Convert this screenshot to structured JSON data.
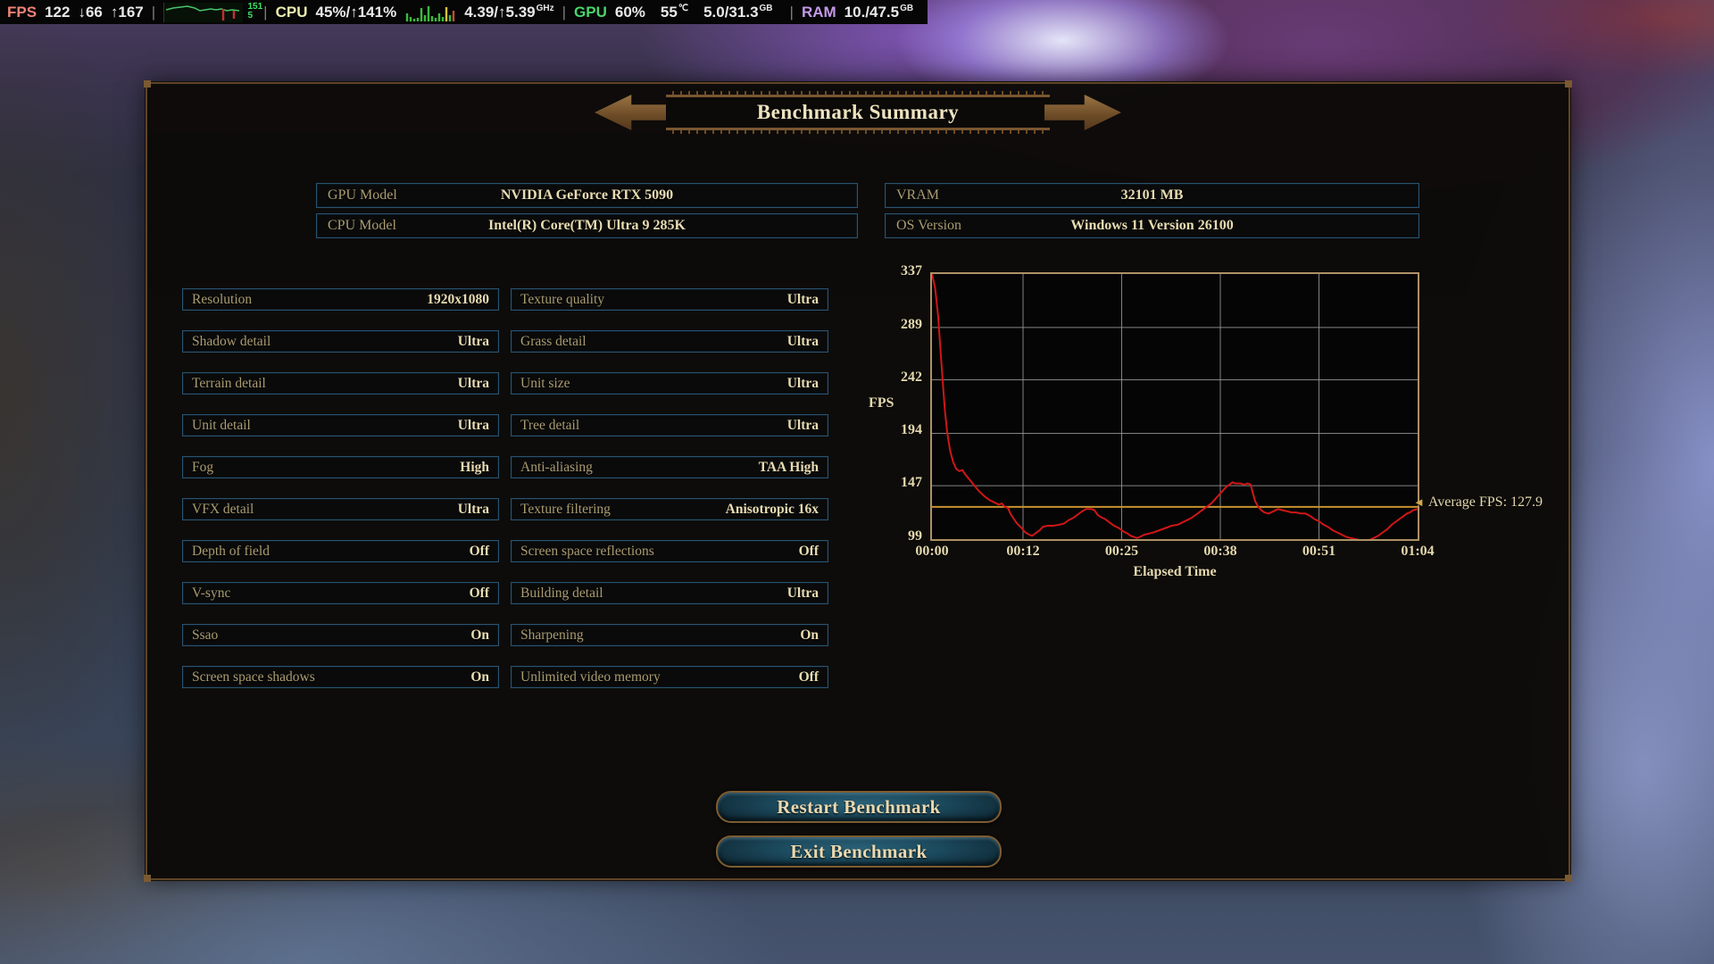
{
  "overlay": {
    "fps": {
      "label": "FPS",
      "current": "122",
      "low": "↓66",
      "high": "↑167"
    },
    "frametime_graph": {
      "icon": "frametime-line-graph",
      "max": "151",
      "min": "5"
    },
    "cpu": {
      "label": "CPU",
      "usage": "45%/↑141%",
      "cores_icon": "cpu-core-bars-graph",
      "clock": "4.39/↑5.39",
      "clock_unit": "GHz"
    },
    "gpu": {
      "label": "GPU",
      "usage": "60%",
      "temp": "55",
      "temp_unit": "℃",
      "vram": "5.0/31.3",
      "vram_unit": "GB"
    },
    "ram": {
      "label": "RAM",
      "usage": "10./47.5",
      "unit": "GB"
    },
    "separator": "|"
  },
  "panel": {
    "title": "Benchmark Summary",
    "system_info": [
      {
        "label": "GPU Model",
        "value": "NVIDIA GeForce RTX 5090"
      },
      {
        "label": "CPU Model",
        "value": "Intel(R) Core(TM) Ultra 9 285K"
      },
      {
        "label": "VRAM",
        "value": "32101 MB"
      },
      {
        "label": "OS Version",
        "value": "Windows 11 Version 26100"
      }
    ],
    "settings_left": [
      {
        "label": "Resolution",
        "value": "1920x1080"
      },
      {
        "label": "Shadow detail",
        "value": "Ultra"
      },
      {
        "label": "Terrain detail",
        "value": "Ultra"
      },
      {
        "label": "Unit detail",
        "value": "Ultra"
      },
      {
        "label": "Fog",
        "value": "High"
      },
      {
        "label": "VFX detail",
        "value": "Ultra"
      },
      {
        "label": "Depth of field",
        "value": "Off"
      },
      {
        "label": "V-sync",
        "value": "Off"
      },
      {
        "label": "Ssao",
        "value": "On"
      },
      {
        "label": "Screen space shadows",
        "value": "On"
      }
    ],
    "settings_right": [
      {
        "label": "Texture quality",
        "value": "Ultra"
      },
      {
        "label": "Grass detail",
        "value": "Ultra"
      },
      {
        "label": "Unit size",
        "value": "Ultra"
      },
      {
        "label": "Tree detail",
        "value": "Ultra"
      },
      {
        "label": "Anti-aliasing",
        "value": "TAA High"
      },
      {
        "label": "Texture filtering",
        "value": "Anisotropic 16x"
      },
      {
        "label": "Screen space reflections",
        "value": "Off"
      },
      {
        "label": "Building detail",
        "value": "Ultra"
      },
      {
        "label": "Sharpening",
        "value": "On"
      },
      {
        "label": "Unlimited video memory",
        "value": "Off"
      }
    ],
    "buttons": {
      "restart": "Restart Benchmark",
      "exit": "Exit Benchmark"
    }
  },
  "chart_data": {
    "type": "line",
    "title": "",
    "xlabel": "Elapsed Time",
    "ylabel": "FPS",
    "x_ticks": [
      "00:00",
      "00:12",
      "00:25",
      "00:38",
      "00:51",
      "01:04"
    ],
    "x_tick_seconds": [
      0,
      12,
      25,
      38,
      51,
      64
    ],
    "y_ticks": [
      337,
      289,
      242,
      194,
      147,
      99
    ],
    "ylim": [
      99,
      337
    ],
    "xlim_seconds": [
      0,
      64
    ],
    "grid": true,
    "line_color": "#d01616",
    "grid_color": "#999999",
    "average_fps": 127.9,
    "average_label": "Average FPS: 127.9",
    "average_arrow": "◄",
    "average_line_color": "#c8922f",
    "series": [
      {
        "name": "FPS",
        "points": [
          [
            0,
            337
          ],
          [
            0.4,
            325
          ],
          [
            0.8,
            300
          ],
          [
            1.1,
            270
          ],
          [
            1.4,
            242
          ],
          [
            1.7,
            215
          ],
          [
            2.0,
            195
          ],
          [
            2.4,
            178
          ],
          [
            2.8,
            168
          ],
          [
            3.2,
            162
          ],
          [
            3.6,
            160
          ],
          [
            4.0,
            161
          ],
          [
            4.4,
            157
          ],
          [
            5.0,
            152
          ],
          [
            5.6,
            147
          ],
          [
            6.2,
            142
          ],
          [
            7.0,
            137
          ],
          [
            7.6,
            134
          ],
          [
            8.2,
            132
          ],
          [
            8.8,
            130
          ],
          [
            9.2,
            131
          ],
          [
            9.6,
            128
          ],
          [
            10.0,
            127
          ],
          [
            10.4,
            121
          ],
          [
            10.8,
            117
          ],
          [
            11.2,
            113
          ],
          [
            11.8,
            109
          ],
          [
            12.3,
            105
          ],
          [
            12.8,
            103
          ],
          [
            13.2,
            102
          ],
          [
            13.6,
            104
          ],
          [
            14.2,
            107
          ],
          [
            14.6,
            110
          ],
          [
            15.2,
            111
          ],
          [
            16.0,
            111
          ],
          [
            16.8,
            112
          ],
          [
            17.4,
            113
          ],
          [
            18.0,
            116
          ],
          [
            18.6,
            118
          ],
          [
            19.2,
            121
          ],
          [
            19.8,
            124
          ],
          [
            20.3,
            126
          ],
          [
            21.0,
            126
          ],
          [
            21.4,
            125
          ],
          [
            21.8,
            121
          ],
          [
            22.2,
            119
          ],
          [
            22.8,
            117
          ],
          [
            23.4,
            114
          ],
          [
            24.0,
            111
          ],
          [
            24.6,
            109
          ],
          [
            25.2,
            106
          ],
          [
            25.8,
            104
          ],
          [
            26.2,
            102
          ],
          [
            26.6,
            101
          ],
          [
            27.0,
            100
          ],
          [
            27.4,
            101
          ],
          [
            28.0,
            103
          ],
          [
            28.6,
            104
          ],
          [
            29.2,
            105
          ],
          [
            30.0,
            107
          ],
          [
            30.8,
            109
          ],
          [
            31.6,
            111
          ],
          [
            32.4,
            112
          ],
          [
            33.0,
            114
          ],
          [
            33.6,
            116
          ],
          [
            34.2,
            118
          ],
          [
            34.8,
            121
          ],
          [
            35.2,
            123
          ],
          [
            35.8,
            126
          ],
          [
            36.2,
            128
          ],
          [
            36.8,
            131
          ],
          [
            37.2,
            134
          ],
          [
            37.6,
            137
          ],
          [
            38.0,
            140
          ],
          [
            38.4,
            143
          ],
          [
            38.8,
            146
          ],
          [
            39.2,
            148
          ],
          [
            39.6,
            150
          ],
          [
            40.0,
            149
          ],
          [
            40.6,
            149
          ],
          [
            41.2,
            148
          ],
          [
            41.6,
            149
          ],
          [
            42.0,
            148
          ],
          [
            42.3,
            140
          ],
          [
            42.6,
            133
          ],
          [
            43.0,
            128
          ],
          [
            43.4,
            125
          ],
          [
            43.8,
            123
          ],
          [
            44.4,
            122
          ],
          [
            45.0,
            124
          ],
          [
            45.6,
            126
          ],
          [
            46.2,
            125
          ],
          [
            46.8,
            124
          ],
          [
            47.4,
            123
          ],
          [
            48.0,
            123
          ],
          [
            48.6,
            122
          ],
          [
            49.2,
            122
          ],
          [
            49.8,
            120
          ],
          [
            50.4,
            117
          ],
          [
            51.0,
            115
          ],
          [
            51.6,
            112
          ],
          [
            52.2,
            110
          ],
          [
            52.8,
            107
          ],
          [
            53.4,
            105
          ],
          [
            54.0,
            103
          ],
          [
            54.6,
            101
          ],
          [
            55.2,
            100
          ],
          [
            55.8,
            99
          ],
          [
            56.4,
            98
          ],
          [
            57.0,
            97
          ],
          [
            57.6,
            98
          ],
          [
            58.2,
            100
          ],
          [
            58.8,
            102
          ],
          [
            59.4,
            105
          ],
          [
            60.0,
            108
          ],
          [
            60.6,
            112
          ],
          [
            61.2,
            115
          ],
          [
            61.8,
            118
          ],
          [
            62.2,
            120
          ],
          [
            62.6,
            122
          ],
          [
            63.0,
            123
          ],
          [
            63.4,
            125
          ],
          [
            64.0,
            126
          ]
        ]
      }
    ]
  }
}
